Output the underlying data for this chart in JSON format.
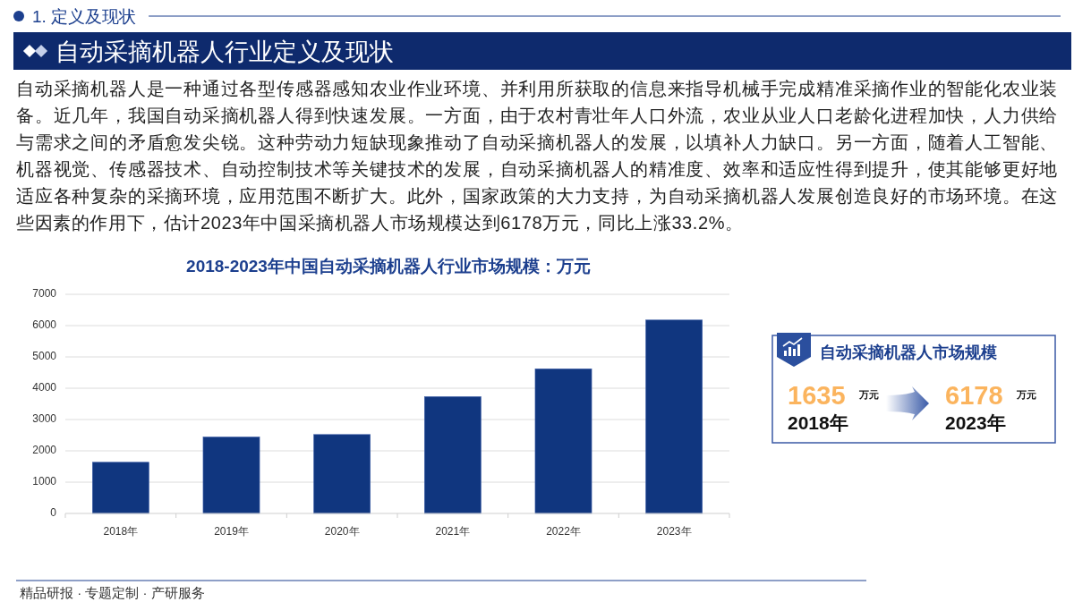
{
  "chart_data": [
    {
      "type": "bar",
      "title": "2018-2023年中国自动采摘机器人行业市场规模：万元",
      "categories": [
        "2018年",
        "2019年",
        "2020年",
        "2021年",
        "2022年",
        "2023年"
      ],
      "values": [
        1635,
        2440,
        2520,
        3730,
        4620,
        6178
      ],
      "color": "#10367f",
      "ylim": [
        0,
        7000
      ],
      "yticks": [
        0,
        1000,
        2000,
        3000,
        4000,
        5000,
        6000,
        7000
      ],
      "grid": "y",
      "annotations": [
        "1. 定义及现状",
        "自动采摘机器人行业定义及现状",
        "自动采摘机器人是一种通过各型传感器感知农业作业环境、并利用所获取的信息来指导机械手完成精准采摘作业的智能化农业装备。近几年，我国自动采摘机器人得到快速发展。一方面，由于农村青壮年人口外流，农业从业人口老龄化进程加快，人力供给与需求之间的矛盾愈发尖锐。这种劳动力短缺现象推动了自动采摘机器人的发展，以填补人力缺口。另一方面，随着人工智能、机器视觉、传感器技术、自动控制技术等关键技术的发展，自动采摘机器人的精准度、效率和适应性得到提升，使其能够更好地适应各种复杂的采摘环境，应用范围不断扩大。此外，国家政策的大力支持，为自动采摘机器人发展创造良好的市场环境。在这些因素的作用下，估计2023年中国采摘机器人市场规模达到6178万元，同比上涨33.2%。",
        "精品研报 · 专题定制 · 产研服务"
      ]
    },
    {
      "type": "other",
      "title": "自动采摘机器人市场规模",
      "categories": [
        "2018年",
        "2023年"
      ],
      "values": [
        1635,
        6178
      ],
      "colors": [
        "#fbb45e",
        "#fbb45e"
      ],
      "data_labels": true,
      "annotations": [
        "万元",
        "万元"
      ]
    }
  ]
}
